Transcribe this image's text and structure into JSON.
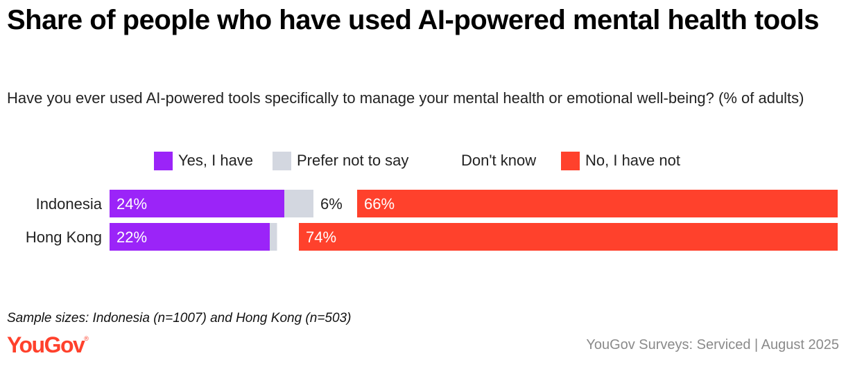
{
  "header": {
    "title": "Share of people who have used AI-powered mental health tools",
    "subtitle": "Have you ever used AI-powered tools specifically to manage your mental health or emotional well-being? (% of adults)"
  },
  "legend": [
    {
      "label": "Yes, I have",
      "color": "#9b24f8"
    },
    {
      "label": "Prefer not to say",
      "color": "#d3d7e0"
    },
    {
      "label": "Don't know",
      "color": "#ffffff"
    },
    {
      "label": "No, I have not",
      "color": "#ff412c"
    }
  ],
  "chart_data": {
    "type": "bar",
    "orientation": "horizontal",
    "stacked": true,
    "categories": [
      "Indonesia",
      "Hong Kong"
    ],
    "series": [
      {
        "name": "Yes, I have",
        "color": "#9b24f8",
        "values": [
          24,
          22
        ],
        "labels": [
          "24%",
          "22%"
        ]
      },
      {
        "name": "Prefer not to say",
        "color": "#d3d7e0",
        "values": [
          4,
          1
        ],
        "labels": [
          "",
          ""
        ]
      },
      {
        "name": "Don't know",
        "color": "#ffffff",
        "values": [
          6,
          3
        ],
        "labels": [
          "6%",
          ""
        ]
      },
      {
        "name": "No, I have not",
        "color": "#ff412c",
        "values": [
          66,
          74
        ],
        "labels": [
          "66%",
          "74%"
        ]
      }
    ],
    "xlim": [
      0,
      100
    ],
    "legend_position": "top"
  },
  "footer": {
    "note": "Sample sizes: Indonesia (n=1007) and Hong Kong (n=503)",
    "logo": "YouGov",
    "source": "YouGov Surveys: Serviced | August 2025"
  }
}
